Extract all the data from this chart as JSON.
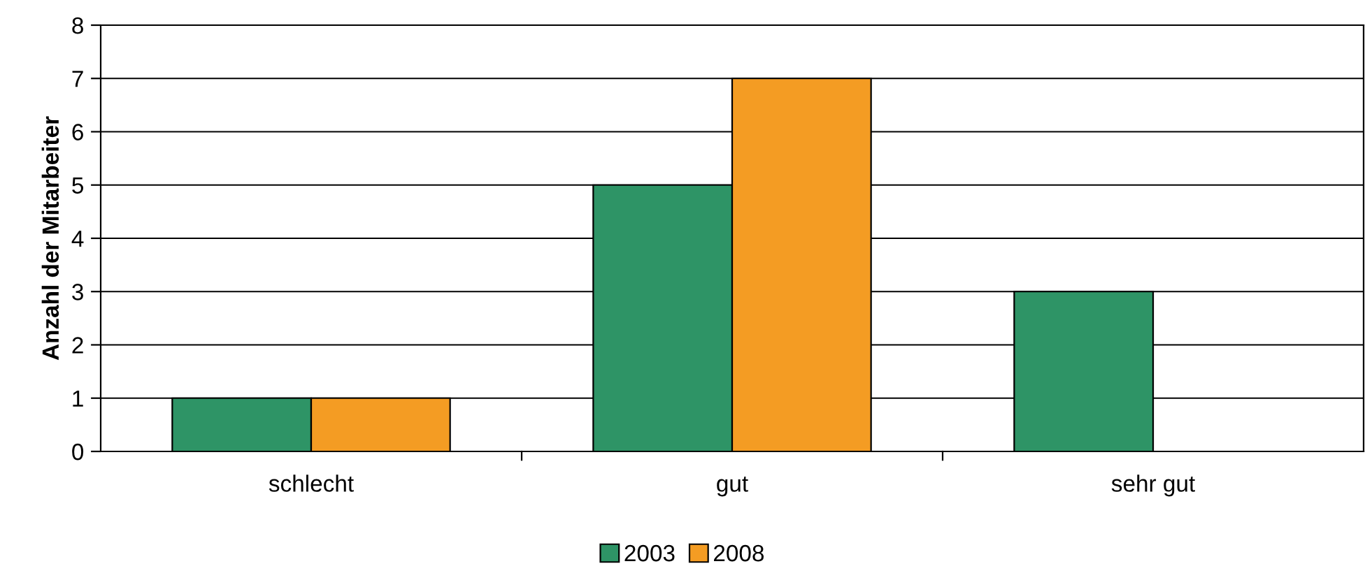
{
  "chart_data": {
    "type": "bar",
    "ylabel": "Anzahl der Mitarbeiter",
    "categories": [
      "schlecht",
      "gut",
      "sehr gut"
    ],
    "series": [
      {
        "name": "2003",
        "color": "#2e9466",
        "values": [
          1,
          5,
          3
        ]
      },
      {
        "name": "2008",
        "color": "#f49c23",
        "values": [
          1,
          7,
          null
        ]
      }
    ],
    "ylim": [
      0,
      8
    ],
    "yticks": [
      0,
      1,
      2,
      3,
      4,
      5,
      6,
      7,
      8
    ],
    "grid": "y",
    "legend": "bottom"
  }
}
